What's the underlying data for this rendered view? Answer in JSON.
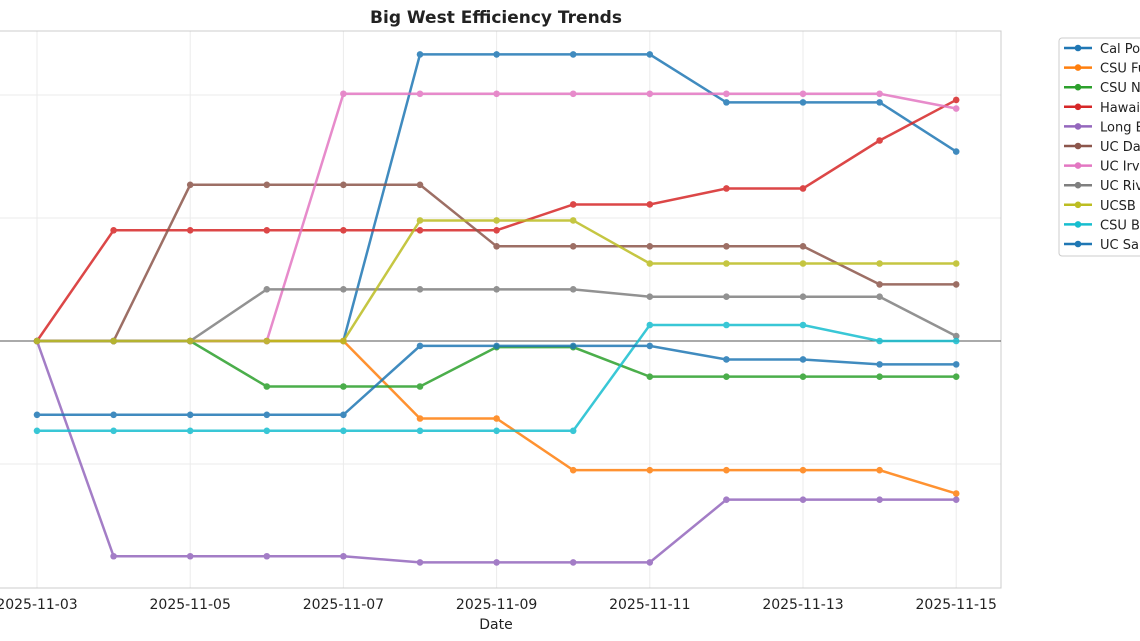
{
  "chart_data": {
    "type": "line",
    "title": "Big West Efficiency Trends",
    "xlabel": "Date",
    "ylabel": "",
    "x": [
      "2025-11-03",
      "2025-11-04",
      "2025-11-05",
      "2025-11-06",
      "2025-11-07",
      "2025-11-08",
      "2025-11-09",
      "2025-11-10",
      "2025-11-11",
      "2025-11-12",
      "2025-11-13",
      "2025-11-14",
      "2025-11-15"
    ],
    "xticks": [
      "2025-11-03",
      "2025-11-05",
      "2025-11-07",
      "2025-11-09",
      "2025-11-11",
      "2025-11-13",
      "2025-11-15"
    ],
    "y_tick_labels_visible": false,
    "y_units_note": "values relative to unlabeled gridlines (one gridline step = 1)",
    "ylim": [
      -2.0,
      2.52
    ],
    "yticks": [
      -1,
      0,
      1,
      2
    ],
    "zero_line": true,
    "grid": true,
    "legend_placement": "outside-right",
    "series": [
      {
        "name": "Cal Po",
        "color": "#1f77b4",
        "values": [
          0,
          0,
          0,
          0,
          0,
          2.33,
          2.33,
          2.33,
          2.33,
          1.94,
          1.94,
          1.94,
          1.54
        ]
      },
      {
        "name": "CSU Fu",
        "color": "#ff7f0e",
        "values": [
          0,
          0,
          0,
          0,
          0,
          -0.63,
          -0.63,
          -1.05,
          -1.05,
          -1.05,
          -1.05,
          -1.05,
          -1.24
        ]
      },
      {
        "name": "CSU N",
        "color": "#2ca02c",
        "values": [
          0,
          0,
          0,
          -0.37,
          -0.37,
          -0.37,
          -0.05,
          -0.05,
          -0.29,
          -0.29,
          -0.29,
          -0.29,
          -0.29
        ]
      },
      {
        "name": "Hawai",
        "color": "#d62728",
        "values": [
          0,
          0.9,
          0.9,
          0.9,
          0.9,
          0.9,
          0.9,
          1.11,
          1.11,
          1.24,
          1.24,
          1.63,
          1.96
        ]
      },
      {
        "name": "Long B",
        "color": "#9467bd",
        "values": [
          0,
          -1.75,
          -1.75,
          -1.75,
          -1.75,
          -1.8,
          -1.8,
          -1.8,
          -1.8,
          -1.29,
          -1.29,
          -1.29,
          -1.29
        ]
      },
      {
        "name": "UC Da",
        "color": "#8c564b",
        "values": [
          0,
          0,
          1.27,
          1.27,
          1.27,
          1.27,
          0.77,
          0.77,
          0.77,
          0.77,
          0.77,
          0.46,
          0.46
        ]
      },
      {
        "name": "UC Irv",
        "color": "#e377c2",
        "values": [
          0,
          0,
          0,
          0,
          2.01,
          2.01,
          2.01,
          2.01,
          2.01,
          2.01,
          2.01,
          2.01,
          1.89
        ]
      },
      {
        "name": "UC Riv",
        "color": "#7f7f7f",
        "values": [
          0,
          0,
          0,
          0.42,
          0.42,
          0.42,
          0.42,
          0.42,
          0.36,
          0.36,
          0.36,
          0.36,
          0.04
        ]
      },
      {
        "name": "UCSB",
        "color": "#bcbd22",
        "values": [
          0,
          0,
          0,
          0,
          0,
          0.98,
          0.98,
          0.98,
          0.63,
          0.63,
          0.63,
          0.63,
          0.63
        ]
      },
      {
        "name": "CSU B",
        "color": "#17becf",
        "values": [
          -0.73,
          -0.73,
          -0.73,
          -0.73,
          -0.73,
          -0.73,
          -0.73,
          -0.73,
          0.13,
          0.13,
          0.13,
          0,
          0
        ]
      },
      {
        "name": "UC Sa",
        "color": "#1f77b4",
        "values": [
          -0.6,
          -0.6,
          -0.6,
          -0.6,
          -0.6,
          -0.04,
          -0.04,
          -0.04,
          -0.04,
          -0.15,
          -0.15,
          -0.19,
          -0.19
        ]
      }
    ]
  }
}
